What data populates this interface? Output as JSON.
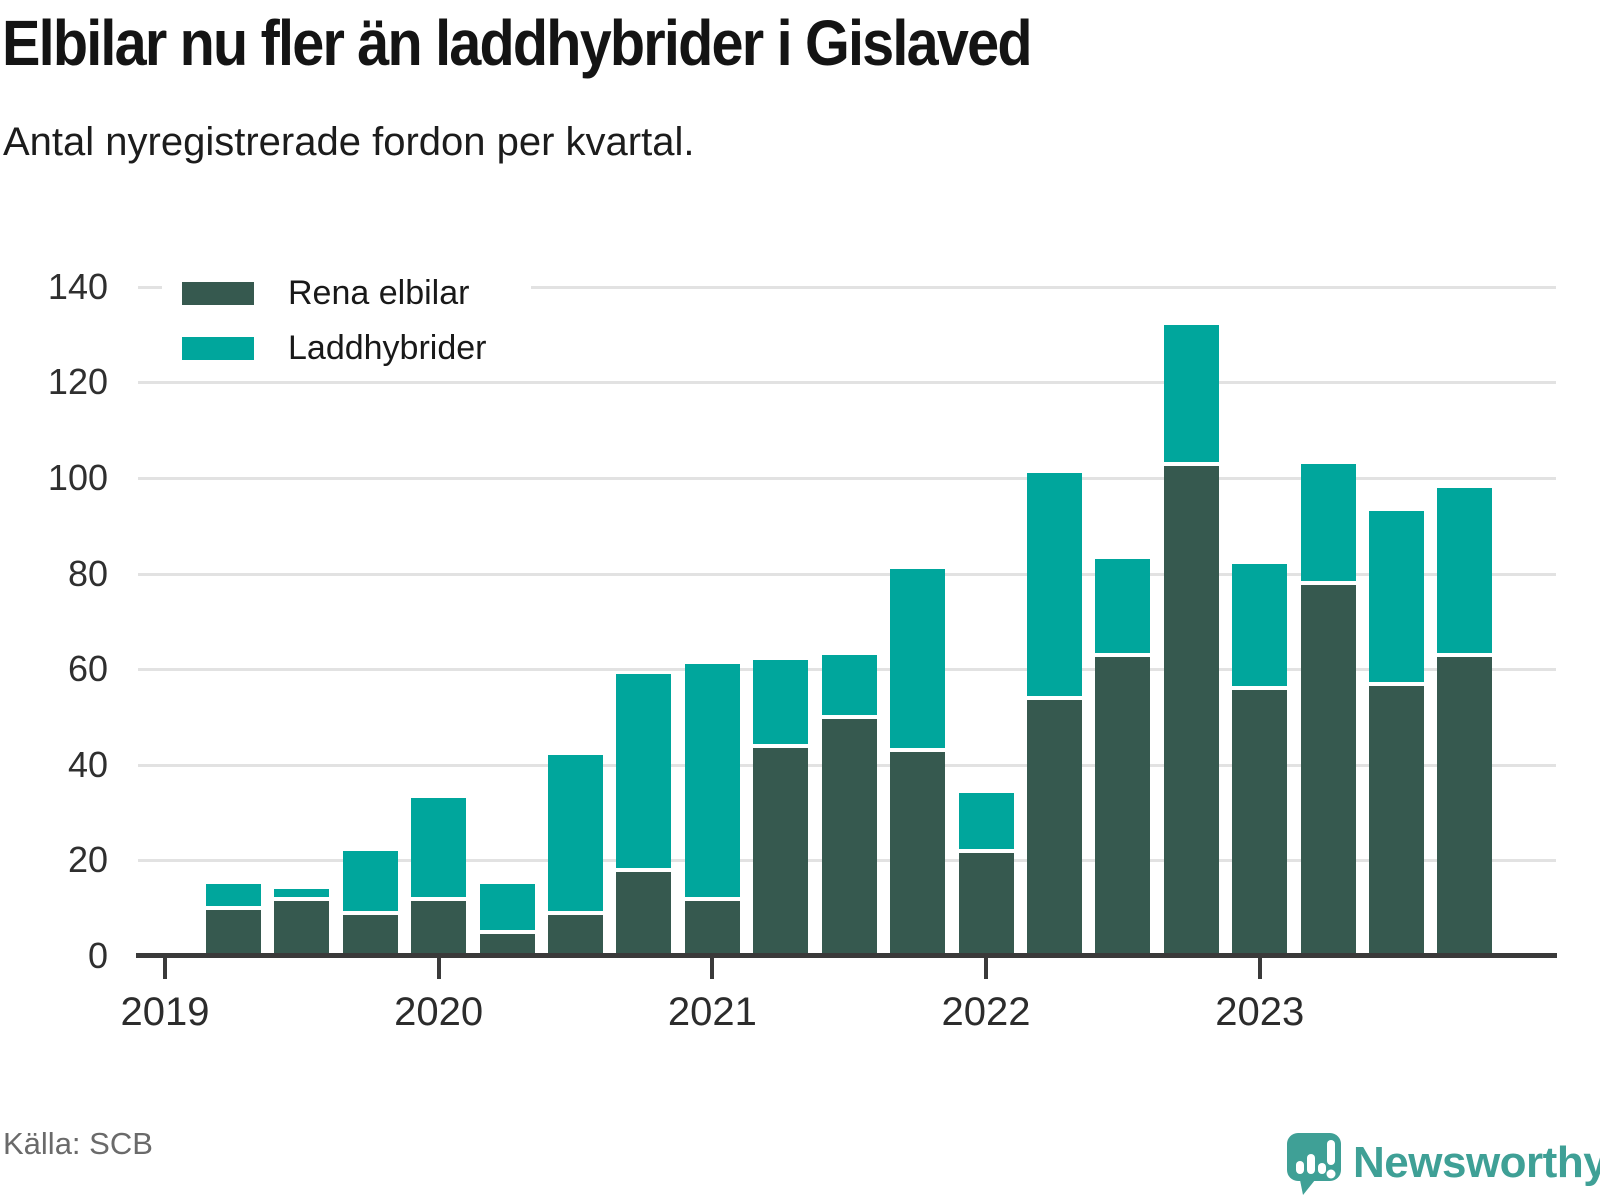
{
  "header": {
    "title": "Elbilar nu fler än laddhybrider i Gislaved",
    "subtitle": "Antal nyregistrerade fordon per kvartal."
  },
  "footer": {
    "source": "Källa: SCB",
    "brand": "Newsworthy"
  },
  "colors": {
    "rena_elbilar": "#36594F",
    "laddhybrider": "#00A69C",
    "brand": "#3FA096",
    "gridline": "#e2e2e2",
    "axis": "#3a3a3a"
  },
  "chart_data": {
    "type": "bar",
    "stacked": true,
    "title": "Elbilar nu fler än laddhybrider i Gislaved",
    "subtitle": "Antal nyregistrerade fordon per kvartal.",
    "categories": [
      "Q2 2019",
      "Q3 2019",
      "Q4 2019",
      "Q1 2020",
      "Q2 2020",
      "Q3 2020",
      "Q4 2020",
      "Q1 2021",
      "Q2 2021",
      "Q3 2021",
      "Q4 2021",
      "Q1 2022",
      "Q2 2022",
      "Q3 2022",
      "Q4 2022",
      "Q1 2023",
      "Q2 2023",
      "Q3 2023",
      "Q4 2023"
    ],
    "series": [
      {
        "name": "Rena elbilar",
        "color": "#36594F",
        "values": [
          10,
          12,
          9,
          12,
          5,
          9,
          18,
          12,
          44,
          50,
          43,
          22,
          54,
          63,
          103,
          56,
          78,
          57,
          63
        ]
      },
      {
        "name": "Laddhybrider",
        "color": "#00A69C",
        "values": [
          5,
          2,
          13,
          21,
          10,
          33,
          41,
          49,
          18,
          13,
          38,
          12,
          47,
          20,
          29,
          26,
          25,
          36,
          35
        ]
      }
    ],
    "xlabel": "",
    "ylabel": "",
    "ylim": [
      0,
      140
    ],
    "yticks": [
      0,
      20,
      40,
      60,
      80,
      100,
      120,
      140
    ],
    "xticks": [
      "2019",
      "2020",
      "2021",
      "2022",
      "2023"
    ],
    "grid": true,
    "legend_position": "top-left"
  }
}
